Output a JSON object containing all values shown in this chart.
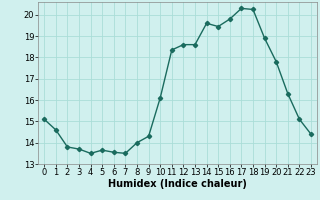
{
  "x": [
    0,
    1,
    2,
    3,
    4,
    5,
    6,
    7,
    8,
    9,
    10,
    11,
    12,
    13,
    14,
    15,
    16,
    17,
    18,
    19,
    20,
    21,
    22,
    23
  ],
  "y": [
    15.1,
    14.6,
    13.8,
    13.7,
    13.5,
    13.65,
    13.55,
    13.5,
    14.0,
    14.3,
    16.1,
    18.35,
    18.6,
    18.6,
    19.6,
    19.45,
    19.8,
    20.3,
    20.25,
    18.9,
    17.8,
    16.3,
    15.1,
    14.4
  ],
  "line_color": "#1a6b5e",
  "marker": "D",
  "markersize": 2.2,
  "linewidth": 1.0,
  "bg_color": "#d0f0ee",
  "grid_color": "#aaddd8",
  "xlabel": "Humidex (Indice chaleur)",
  "xlabel_fontsize": 7,
  "xlabel_fontweight": "bold",
  "tick_fontsize": 6,
  "ylim": [
    13.0,
    20.6
  ],
  "xlim": [
    -0.5,
    23.5
  ],
  "yticks": [
    13,
    14,
    15,
    16,
    17,
    18,
    19,
    20
  ],
  "xticks": [
    0,
    1,
    2,
    3,
    4,
    5,
    6,
    7,
    8,
    9,
    10,
    11,
    12,
    13,
    14,
    15,
    16,
    17,
    18,
    19,
    20,
    21,
    22,
    23
  ]
}
